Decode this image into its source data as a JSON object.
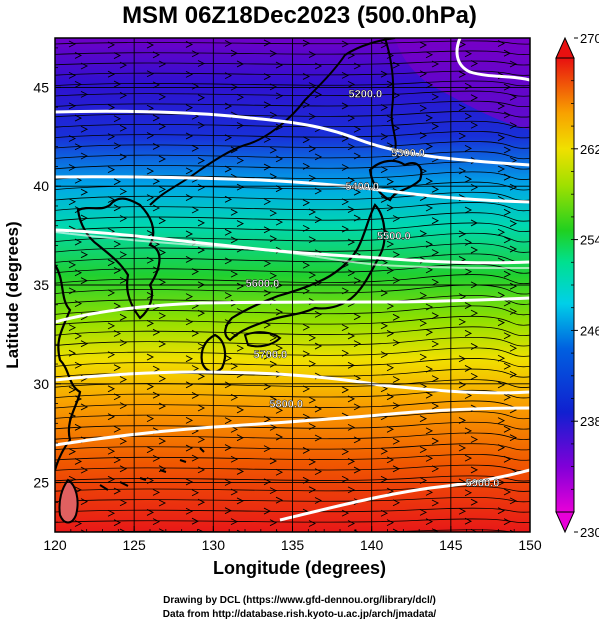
{
  "title": "MSM 06Z18Dec2023 (500.0hPa)",
  "xlabel": "Longitude (degrees)",
  "ylabel": "Latitude  (degrees)",
  "credit_line1": "Drawing by DCL (https://www.gfd-dennou.org/library/dcl/)",
  "credit_line2": "Data from http://database.rish.kyoto-u.ac.jp/arch/jmadata/",
  "chart_data": {
    "type": "heatmap",
    "field": "temperature shading with geopotential height contours and wind streamlines",
    "xlim": [
      120,
      150
    ],
    "ylim": [
      22.5,
      47.5
    ],
    "x_ticks": [
      "120",
      "125",
      "130",
      "135",
      "140",
      "145",
      "150"
    ],
    "y_ticks": [
      "25",
      "30",
      "35",
      "40",
      "45"
    ],
    "colorbar": {
      "min": 230,
      "max": 270,
      "tick_labels": [
        "230",
        "238",
        "246",
        "254",
        "262",
        "270"
      ],
      "colors": [
        "#e800d8",
        "#8000d8",
        "#1020d0",
        "#00a8e8",
        "#00e0a0",
        "#20d020",
        "#a0e000",
        "#f0e000",
        "#f8a000",
        "#f05000",
        "#e81010"
      ]
    },
    "contours": [
      {
        "label": "5200.0",
        "lon": 139.6,
        "lat": 44.5
      },
      {
        "label": "5300.0",
        "lon": 142.3,
        "lat": 41.5
      },
      {
        "label": "5400.0",
        "lon": 139.4,
        "lat": 39.8
      },
      {
        "label": "5500.0",
        "lon": 141.4,
        "lat": 37.3
      },
      {
        "label": "5600.0",
        "lon": 133.1,
        "lat": 34.9
      },
      {
        "label": "5700.0",
        "lon": 133.6,
        "lat": 31.3
      },
      {
        "label": "5800.0",
        "lon": 134.6,
        "lat": 28.8
      },
      {
        "label": "5900.0",
        "lon": 147.0,
        "lat": 24.8
      }
    ],
    "grid": true
  }
}
